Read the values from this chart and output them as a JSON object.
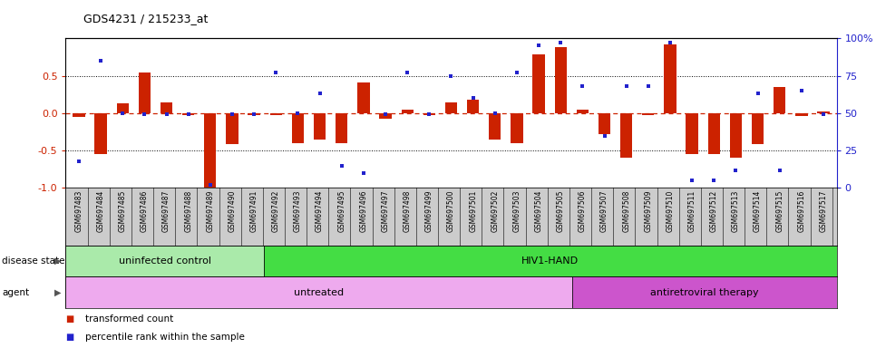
{
  "title": "GDS4231 / 215233_at",
  "samples": [
    "GSM697483",
    "GSM697484",
    "GSM697485",
    "GSM697486",
    "GSM697487",
    "GSM697488",
    "GSM697489",
    "GSM697490",
    "GSM697491",
    "GSM697492",
    "GSM697493",
    "GSM697494",
    "GSM697495",
    "GSM697496",
    "GSM697497",
    "GSM697498",
    "GSM697499",
    "GSM697500",
    "GSM697501",
    "GSM697502",
    "GSM697503",
    "GSM697504",
    "GSM697505",
    "GSM697506",
    "GSM697507",
    "GSM697508",
    "GSM697509",
    "GSM697510",
    "GSM697511",
    "GSM697512",
    "GSM697513",
    "GSM697514",
    "GSM697515",
    "GSM697516",
    "GSM697517"
  ],
  "bar_values": [
    -0.05,
    -0.55,
    0.13,
    0.54,
    0.14,
    -0.03,
    -1.0,
    -0.42,
    -0.03,
    -0.03,
    -0.4,
    -0.35,
    -0.4,
    0.41,
    -0.08,
    0.04,
    -0.03,
    0.14,
    0.18,
    -0.35,
    -0.4,
    0.78,
    0.88,
    0.04,
    -0.28,
    -0.6,
    -0.03,
    0.92,
    -0.55,
    -0.55,
    -0.6,
    -0.42,
    0.35,
    -0.04,
    0.02
  ],
  "scatter_values": [
    0.18,
    0.85,
    0.5,
    0.49,
    0.49,
    0.49,
    0.02,
    0.49,
    0.49,
    0.77,
    0.5,
    0.63,
    0.15,
    0.1,
    0.49,
    0.77,
    0.49,
    0.75,
    0.6,
    0.5,
    0.77,
    0.95,
    0.97,
    0.68,
    0.35,
    0.68,
    0.68,
    0.97,
    0.05,
    0.05,
    0.12,
    0.63,
    0.12,
    0.65,
    0.49
  ],
  "bar_color": "#cc2200",
  "scatter_color": "#2222cc",
  "ylim": [
    -1.0,
    1.0
  ],
  "yticks_left": [
    -1.0,
    -0.5,
    0.0,
    0.5
  ],
  "yticks_right": [
    0,
    25,
    50,
    75,
    100
  ],
  "hlines_dotted": [
    -0.5,
    0.5
  ],
  "hline_zero": 0.0,
  "disease_state_groups": [
    {
      "label": "uninfected control",
      "start": 0,
      "end": 9,
      "color": "#aaeaaa"
    },
    {
      "label": "HIV1-HAND",
      "start": 9,
      "end": 35,
      "color": "#44dd44"
    }
  ],
  "agent_groups": [
    {
      "label": "untreated",
      "start": 0,
      "end": 23,
      "color": "#eeaaee"
    },
    {
      "label": "antiretroviral therapy",
      "start": 23,
      "end": 35,
      "color": "#cc55cc"
    }
  ],
  "legend_items": [
    {
      "label": "transformed count",
      "color": "#cc2200"
    },
    {
      "label": "percentile rank within the sample",
      "color": "#2222cc"
    }
  ],
  "disease_state_label": "disease state",
  "agent_label": "agent",
  "bg_color": "#ffffff",
  "xtick_bg": "#cccccc"
}
